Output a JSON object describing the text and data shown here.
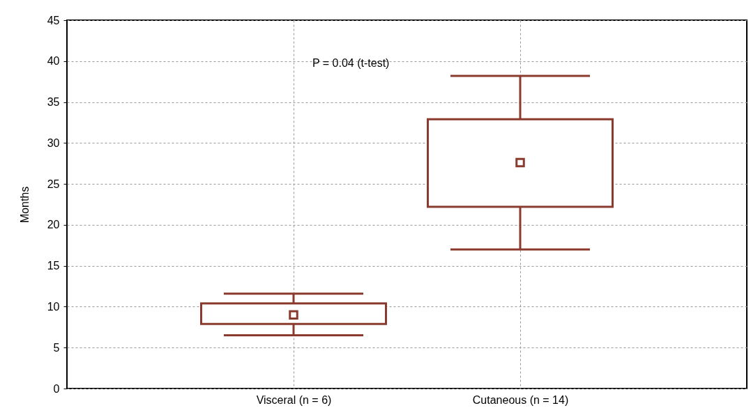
{
  "chart_data": {
    "type": "box",
    "ylabel": "Months",
    "categories": [
      "Visceral (n = 6)",
      "Cutaneous (n = 14)"
    ],
    "series": [
      {
        "color": "#8b3a2e",
        "boxes": [
          {
            "low": 6.5,
            "q1": 7.9,
            "median": 9.0,
            "q3": 10.4,
            "high": 11.6
          },
          {
            "low": 17.0,
            "q1": 22.2,
            "median": 27.6,
            "q3": 32.9,
            "high": 38.2
          }
        ]
      }
    ],
    "ylim": [
      0,
      45
    ],
    "yticks": [
      0,
      5,
      10,
      15,
      20,
      25,
      30,
      35,
      40,
      45
    ],
    "grid": true,
    "marker": "square",
    "annotations": [
      "P = 0.04 (t-test)"
    ]
  }
}
